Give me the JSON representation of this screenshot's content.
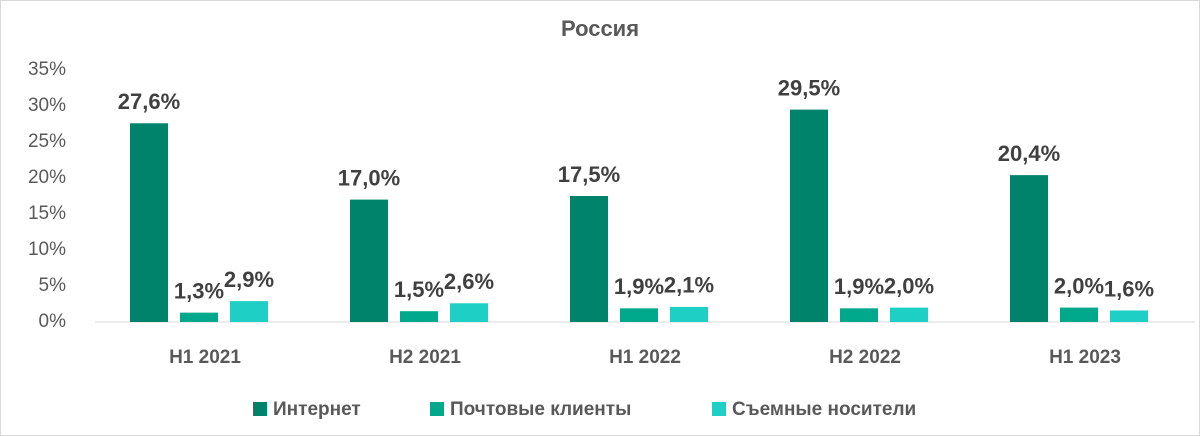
{
  "chart_data": {
    "type": "bar",
    "title": "Россия",
    "categories": [
      "H1 2021",
      "H2 2021",
      "H1 2022",
      "H2 2022",
      "H1 2023"
    ],
    "series": [
      {
        "name": "Интернет",
        "color": "#00836b",
        "values": [
          27.6,
          17.0,
          17.5,
          29.5,
          20.4
        ],
        "value_labels": [
          "27,6%",
          "17,0%",
          "17,5%",
          "29,5%",
          "20,4%"
        ]
      },
      {
        "name": "Почтовые клиенты",
        "color": "#00a88c",
        "values": [
          1.3,
          1.5,
          1.9,
          1.9,
          2.0
        ],
        "value_labels": [
          "1,3%",
          "1,5%",
          "1,9%",
          "1,9%",
          "2,0%"
        ]
      },
      {
        "name": "Съемные носители",
        "color": "#1dcfc4",
        "values": [
          2.9,
          2.6,
          2.1,
          2.0,
          1.6
        ],
        "value_labels": [
          "2,9%",
          "2,6%",
          "2,1%",
          "2,0%",
          "1,6%"
        ]
      }
    ],
    "ylim": [
      0,
      35
    ],
    "yticks": [
      {
        "value": 0,
        "label": "0%"
      },
      {
        "value": 5,
        "label": "5%"
      },
      {
        "value": 10,
        "label": "10%"
      },
      {
        "value": 15,
        "label": "15%"
      },
      {
        "value": 20,
        "label": "20%"
      },
      {
        "value": 25,
        "label": "25%"
      },
      {
        "value": 30,
        "label": "30%"
      },
      {
        "value": 35,
        "label": "35%"
      }
    ],
    "legend": "bottom"
  }
}
